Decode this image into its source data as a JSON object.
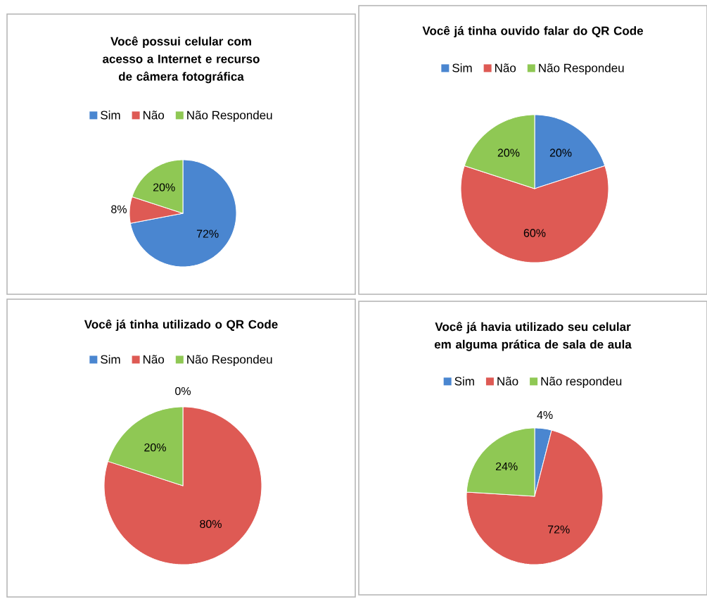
{
  "chart_data": [
    {
      "type": "pie",
      "title": "Você possui celular com acesso a Internet e recurso de câmera fotográfica",
      "categories": [
        "Sim",
        "Não",
        "Não Respondeu"
      ],
      "values": [
        72,
        8,
        20
      ],
      "value_labels": [
        "72%",
        "8%",
        "20%"
      ],
      "colors": [
        "#4a86d0",
        "#de5a54",
        "#8fc854"
      ],
      "legend": "top"
    },
    {
      "type": "pie",
      "title": "Você já tinha ouvido falar do QR Code",
      "categories": [
        "Sim",
        "Não",
        "Não Respondeu"
      ],
      "values": [
        20,
        60,
        20
      ],
      "value_labels": [
        "20%",
        "60%",
        "20%"
      ],
      "colors": [
        "#4a86d0",
        "#de5a54",
        "#8fc854"
      ],
      "legend": "top"
    },
    {
      "type": "pie",
      "title": "Você já tinha utilizado o QR Code",
      "categories": [
        "Sim",
        "Não",
        "Não Respondeu"
      ],
      "values": [
        0,
        80,
        20
      ],
      "value_labels": [
        "0%",
        "80%",
        "20%"
      ],
      "colors": [
        "#4a86d0",
        "#de5a54",
        "#8fc854"
      ],
      "legend": "top"
    },
    {
      "type": "pie",
      "title": "Você já havia utilizado seu celular em alguma prática de sala de aula",
      "categories": [
        "Sim",
        "Não",
        "Não respondeu"
      ],
      "values": [
        4,
        72,
        24
      ],
      "value_labels": [
        "4%",
        "72%",
        "24%"
      ],
      "colors": [
        "#4a86d0",
        "#de5a54",
        "#8fc854"
      ],
      "legend": "top"
    }
  ]
}
